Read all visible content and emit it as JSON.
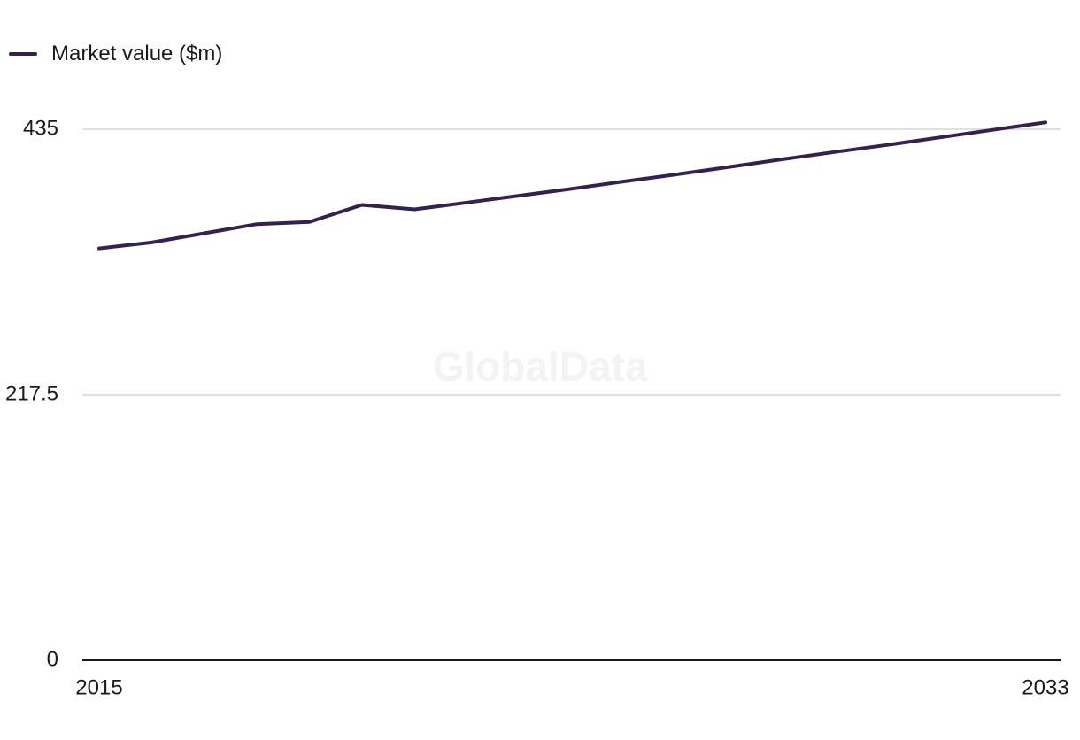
{
  "watermark": "GlobalData",
  "chart_data": {
    "type": "line",
    "title": "",
    "xlabel": "",
    "ylabel": "",
    "x": [
      2015,
      2016,
      2017,
      2018,
      2019,
      2020,
      2021,
      2022,
      2023,
      2024,
      2025,
      2026,
      2027,
      2028,
      2029,
      2030,
      2031,
      2032,
      2033
    ],
    "series": [
      {
        "name": "Market value ($m)",
        "color": "#35204f",
        "values": [
          337.4,
          342.3,
          349.8,
          357.3,
          359.1,
          373.0,
          369.4,
          375.0,
          380.6,
          386.3,
          392.3,
          398.1,
          404.2,
          410.4,
          416.4,
          422.2,
          428.3,
          434.5,
          440.6
        ]
      }
    ],
    "xlim": [
      2015,
      2033
    ],
    "ylim": [
      0,
      435
    ],
    "y_ticks": [
      {
        "value": 0,
        "label": "0"
      },
      {
        "value": 217.5,
        "label": "217.5"
      },
      {
        "value": 435,
        "label": "435"
      }
    ],
    "x_ticks": [
      {
        "value": 2015,
        "label": "2015"
      },
      {
        "value": 2033,
        "label": "2033"
      }
    ],
    "grid": true,
    "legend": "top-left",
    "grid_color": "#d6d6d6",
    "axis_color": "#1a1a1a"
  }
}
